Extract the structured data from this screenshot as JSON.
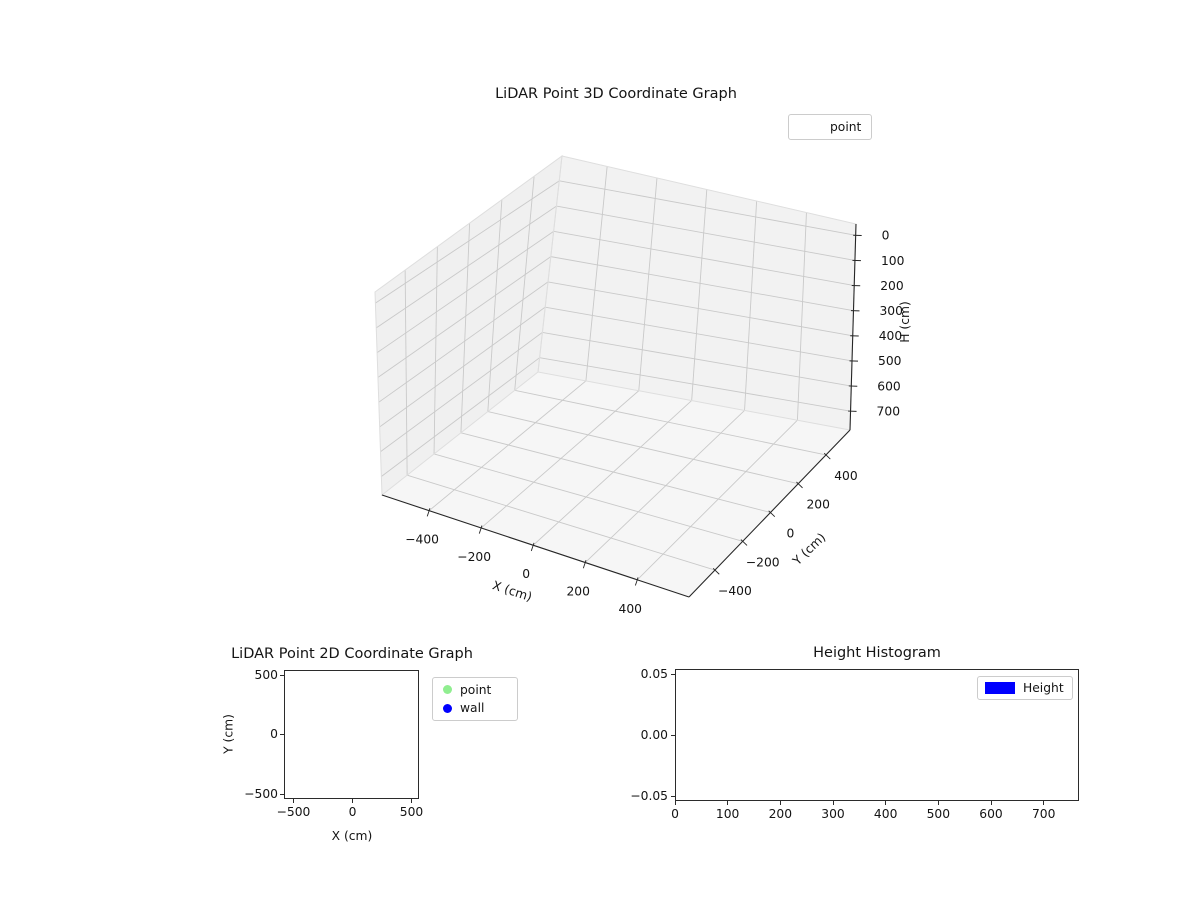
{
  "figure": {
    "background": "#ffffff"
  },
  "chart_data": [
    {
      "type": "scatter",
      "projection": "3d",
      "title": "LiDAR Point 3D Coordinate Graph",
      "xlabel": "X (cm)",
      "ylabel": "Y (cm)",
      "zlabel": "H (cm)",
      "xticks": {
        "values": [
          -400,
          -200,
          0,
          200,
          400
        ],
        "labels": [
          "−400",
          "−200",
          "0",
          "200",
          "400"
        ]
      },
      "yticks": {
        "values": [
          -400,
          -200,
          0,
          200,
          400
        ],
        "labels": [
          "−400",
          "−200",
          "0",
          "200",
          "400"
        ]
      },
      "zticks": {
        "values": [
          0,
          100,
          200,
          300,
          400,
          500,
          600,
          700
        ],
        "labels": [
          "0",
          "100",
          "200",
          "300",
          "400",
          "500",
          "600",
          "700"
        ]
      },
      "zaxis_direction": "inverted (0 at top, 700 at bottom)",
      "grid": true,
      "legend": {
        "position": "upper right",
        "entries": [
          {
            "label": "point",
            "handle": "none"
          }
        ]
      },
      "series": [
        {
          "name": "point",
          "points": []
        }
      ]
    },
    {
      "type": "scatter",
      "title": "LiDAR Point 2D Coordinate Graph",
      "xlabel": "X (cm)",
      "ylabel": "Y (cm)",
      "xlim": [
        -555,
        555
      ],
      "ylim": [
        -555,
        555
      ],
      "xticks": {
        "values": [
          -500,
          0,
          500
        ],
        "labels": [
          "−500",
          "0",
          "500"
        ]
      },
      "yticks": {
        "values": [
          500,
          0,
          -500
        ],
        "labels": [
          "500",
          "0",
          "−500"
        ]
      },
      "grid": false,
      "legend": {
        "position": "outside upper right",
        "entries": [
          {
            "label": "point",
            "marker": "circle",
            "color": "#90ee90"
          },
          {
            "label": "wall",
            "marker": "circle",
            "color": "#0000ff"
          }
        ]
      },
      "series": [
        {
          "name": "point",
          "color": "#90ee90",
          "points": []
        },
        {
          "name": "wall",
          "color": "#0000ff",
          "points": []
        }
      ]
    },
    {
      "type": "histogram",
      "title": "Height Histogram",
      "xlim": [
        0,
        767
      ],
      "ylim": [
        -0.055,
        0.054
      ],
      "xticks": {
        "values": [
          0,
          100,
          200,
          300,
          400,
          500,
          600,
          700
        ],
        "labels": [
          "0",
          "100",
          "200",
          "300",
          "400",
          "500",
          "600",
          "700"
        ]
      },
      "yticks": {
        "values": [
          0.05,
          0,
          -0.05
        ],
        "labels": [
          "0.05",
          "0.00",
          "−0.05"
        ]
      },
      "legend": {
        "position": "upper right",
        "entries": [
          {
            "label": "Height",
            "marker": "rect",
            "color": "#0000ff"
          }
        ]
      },
      "series": [
        {
          "name": "Height",
          "color": "#0000ff",
          "values": []
        }
      ]
    }
  ]
}
